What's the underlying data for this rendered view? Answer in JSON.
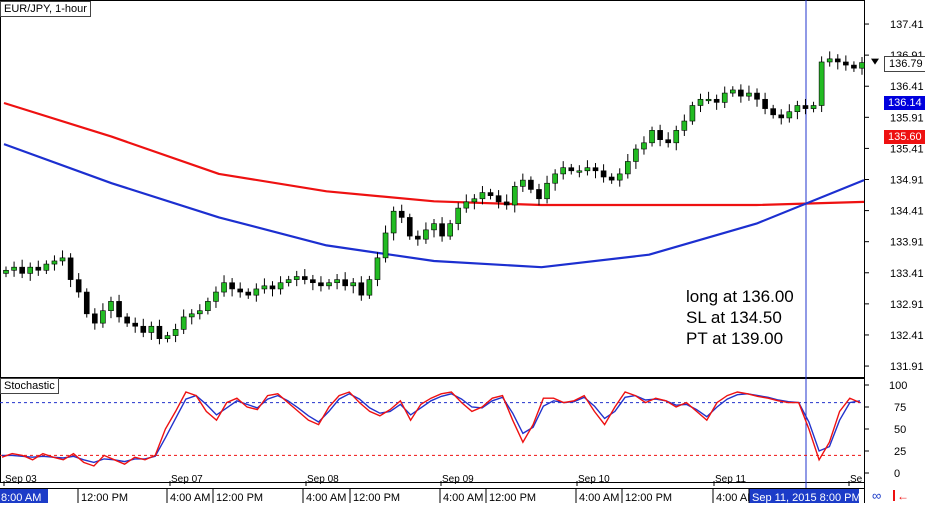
{
  "chart_data": {
    "type": "candlestick",
    "symbol_label": "EUR/JPY, 1-hour",
    "price_axis": {
      "ticks": [
        "137.41",
        "136.91",
        "136.41",
        "135.91",
        "135.41",
        "134.91",
        "134.41",
        "133.91",
        "133.41",
        "132.91",
        "132.41",
        "131.91"
      ],
      "range": [
        131.75,
        137.7
      ]
    },
    "markers": [
      {
        "label": "136.79",
        "value": 136.79,
        "color": "#000000",
        "bg": "#ffffff"
      },
      {
        "label": "136.14",
        "value": 136.14,
        "color": "#ffffff",
        "bg": "#0000dd"
      },
      {
        "label": "135.60",
        "value": 135.6,
        "color": "#ffffff",
        "bg": "#ee1111"
      }
    ],
    "annotation_lines": [
      "long at 136.00",
      "SL at 134.50",
      "PT at 139.00"
    ],
    "date_labels": [
      "Sep 03",
      "Sep 07",
      "Sep 08",
      "Sep 09",
      "Sep 10",
      "Sep 11",
      "Se"
    ],
    "time_labels": [
      "8:00 AM",
      "12:00 PM",
      "4:00 AM",
      "12:00 PM",
      "4:00 AM",
      "12:00 PM",
      "4:00 AM",
      "12:00 PM",
      "4:00 AM",
      "12:00 PM",
      "4:00 AM",
      "Sep 11, 2015 8:00 PM"
    ],
    "close_prices": [
      133.45,
      133.5,
      133.4,
      133.5,
      133.45,
      133.55,
      133.6,
      133.65,
      133.3,
      133.1,
      132.75,
      132.6,
      132.8,
      132.95,
      132.7,
      132.6,
      132.55,
      132.45,
      132.55,
      132.35,
      132.4,
      132.5,
      132.7,
      132.75,
      132.8,
      132.95,
      133.1,
      133.25,
      133.15,
      133.1,
      133.05,
      133.15,
      133.2,
      133.15,
      133.25,
      133.3,
      133.35,
      133.3,
      133.25,
      133.2,
      133.25,
      133.3,
      133.2,
      133.25,
      133.05,
      133.3,
      133.65,
      134.05,
      134.4,
      134.3,
      134.0,
      133.95,
      134.1,
      134.2,
      134.0,
      134.2,
      134.45,
      134.55,
      134.6,
      134.7,
      134.65,
      134.55,
      134.5,
      134.8,
      134.9,
      134.75,
      134.6,
      134.85,
      135.0,
      135.1,
      135.05,
      135.05,
      135.1,
      135.05,
      134.95,
      134.9,
      135.0,
      135.2,
      135.4,
      135.5,
      135.7,
      135.55,
      135.5,
      135.7,
      135.85,
      136.1,
      136.2,
      136.2,
      136.15,
      136.3,
      136.35,
      136.25,
      136.3,
      136.2,
      136.05,
      135.95,
      135.9,
      136.0,
      136.1,
      136.05,
      136.1,
      136.8,
      136.85,
      136.8,
      136.75,
      136.7,
      136.79
    ],
    "moving_averages": [
      {
        "color": "#ee1111",
        "values": [
          136.14,
          135.6,
          135.0,
          134.72,
          134.56,
          134.5,
          134.5,
          134.5,
          134.55
        ]
      },
      {
        "color": "#1c2fd0",
        "values": [
          135.48,
          134.85,
          134.3,
          133.85,
          133.6,
          133.5,
          133.7,
          134.2,
          134.9
        ]
      }
    ],
    "stochastic": {
      "label": "Stochastic",
      "ticks": [
        "100",
        "75",
        "50",
        "25",
        "0"
      ],
      "levels": [
        80,
        20
      ],
      "k": [
        18,
        22,
        20,
        15,
        22,
        18,
        15,
        22,
        12,
        8,
        20,
        15,
        10,
        18,
        15,
        20,
        50,
        70,
        92,
        88,
        70,
        60,
        80,
        85,
        75,
        72,
        88,
        90,
        80,
        70,
        60,
        55,
        75,
        88,
        92,
        80,
        70,
        65,
        72,
        82,
        60,
        78,
        85,
        90,
        92,
        80,
        70,
        75,
        85,
        88,
        60,
        35,
        55,
        85,
        85,
        80,
        82,
        88,
        70,
        55,
        75,
        92,
        88,
        80,
        85,
        82,
        75,
        80,
        70,
        60,
        80,
        88,
        92,
        90,
        87,
        85,
        82,
        80,
        80,
        50,
        15,
        35,
        70,
        85,
        80
      ],
      "d": [
        20,
        20,
        19,
        18,
        19,
        18,
        17,
        19,
        15,
        12,
        16,
        15,
        13,
        16,
        16,
        19,
        40,
        62,
        84,
        88,
        78,
        66,
        74,
        82,
        78,
        74,
        84,
        88,
        82,
        74,
        65,
        58,
        70,
        84,
        90,
        84,
        74,
        68,
        70,
        78,
        66,
        74,
        82,
        87,
        90,
        84,
        75,
        74,
        82,
        86,
        68,
        45,
        52,
        76,
        82,
        80,
        81,
        86,
        76,
        62,
        70,
        86,
        88,
        83,
        84,
        82,
        77,
        78,
        72,
        64,
        75,
        84,
        89,
        90,
        88,
        86,
        83,
        81,
        80,
        58,
        25,
        30,
        60,
        80,
        82
      ]
    }
  }
}
